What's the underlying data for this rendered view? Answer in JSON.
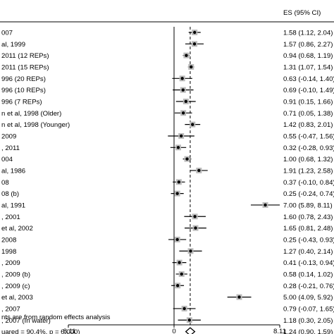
{
  "chart_data": {
    "type": "forest",
    "es_header": "ES (95% CI)",
    "reference_value": 0,
    "pooled_line_value": 1.24,
    "axis_ticks": [
      "-8.11",
      "0",
      "8.11"
    ],
    "xlim": [
      -8.11,
      8.11
    ],
    "studies": [
      {
        "label": "007",
        "es": 1.58,
        "lo": 1.12,
        "hi": 2.04,
        "ci": "1.58 (1.12, 2.04)"
      },
      {
        "label": "al, 1999",
        "es": 1.57,
        "lo": 0.86,
        "hi": 2.27,
        "ci": "1.57 (0.86, 2.27)"
      },
      {
        "label": "2011 (12 REPs)",
        "es": 0.94,
        "lo": 0.68,
        "hi": 1.19,
        "ci": "0.94 (0.68, 1.19)"
      },
      {
        "label": "2011 (15 REPs)",
        "es": 1.31,
        "lo": 1.07,
        "hi": 1.54,
        "ci": "1.31 (1.07, 1.54)"
      },
      {
        "label": "996 (20 REPs)",
        "es": 0.63,
        "lo": -0.14,
        "hi": 1.4,
        "ci": "0.63 (-0.14, 1.40)"
      },
      {
        "label": "996 (10 REPs)",
        "es": 0.69,
        "lo": -0.1,
        "hi": 1.49,
        "ci": "0.69 (-0.10, 1.49)"
      },
      {
        "label": "996 (7 REPs)",
        "es": 0.91,
        "lo": 0.15,
        "hi": 1.66,
        "ci": "0.91 (0.15, 1.66)"
      },
      {
        "label": "n et al, 1998 (Older)",
        "es": 0.71,
        "lo": 0.05,
        "hi": 1.38,
        "ci": "0.71 (0.05, 1.38)"
      },
      {
        "label": "n et al, 1998 (Younger)",
        "es": 1.42,
        "lo": 0.83,
        "hi": 2.01,
        "ci": "1.42 (0.83, 2.01)"
      },
      {
        "label": "2009",
        "es": 0.55,
        "lo": -0.47,
        "hi": 1.56,
        "ci": "0.55 (-0.47, 1.56)"
      },
      {
        "label": ", 2011",
        "es": 0.32,
        "lo": -0.28,
        "hi": 0.93,
        "ci": "0.32 (-0.28, 0.93)"
      },
      {
        "label": "004",
        "es": 1.0,
        "lo": 0.68,
        "hi": 1.32,
        "ci": "1.00 (0.68, 1.32)"
      },
      {
        "label": "al, 1986",
        "es": 1.91,
        "lo": 1.23,
        "hi": 2.58,
        "ci": "1.91 (1.23, 2.58)"
      },
      {
        "label": "08",
        "es": 0.37,
        "lo": -0.1,
        "hi": 0.84,
        "ci": "0.37 (-0.10, 0.84)"
      },
      {
        "label": "08 (b)",
        "es": 0.25,
        "lo": -0.24,
        "hi": 0.74,
        "ci": "0.25 (-0.24, 0.74)"
      },
      {
        "label": " al, 1991",
        "es": 7.0,
        "lo": 5.89,
        "hi": 8.11,
        "ci": "7.00 (5.89, 8.11)"
      },
      {
        "label": ", 2001",
        "es": 1.6,
        "lo": 0.78,
        "hi": 2.43,
        "ci": "1.60 (0.78, 2.43)"
      },
      {
        "label": "et al, 2002",
        "es": 1.65,
        "lo": 0.81,
        "hi": 2.48,
        "ci": "1.65 (0.81, 2.48)"
      },
      {
        "label": " 2008",
        "es": 0.25,
        "lo": -0.43,
        "hi": 0.93,
        "ci": "0.25 (-0.43, 0.93)"
      },
      {
        "label": " 1998",
        "es": 1.27,
        "lo": 0.4,
        "hi": 2.14,
        "ci": "1.27 (0.40, 2.14)"
      },
      {
        "label": ", 2009",
        "es": 0.41,
        "lo": -0.13,
        "hi": 0.94,
        "ci": "0.41 (-0.13, 0.94)"
      },
      {
        "label": ", 2009 (b)",
        "es": 0.58,
        "lo": 0.14,
        "hi": 1.02,
        "ci": "0.58 (0.14, 1.02)"
      },
      {
        "label": ", 2009 (c)",
        "es": 0.28,
        "lo": -0.21,
        "hi": 0.76,
        "ci": "0.28 (-0.21, 0.76)"
      },
      {
        "label": "et al, 2003",
        "es": 5.0,
        "lo": 4.09,
        "hi": 5.92,
        "ci": "5.00 (4.09, 5.92)"
      },
      {
        "label": ", 2007",
        "es": 0.79,
        "lo": -0.07,
        "hi": 1.65,
        "ci": "0.79 (-0.07, 1.65)"
      },
      {
        "label": ", 2007 (In water)",
        "es": 1.18,
        "lo": 0.3,
        "hi": 2.05,
        "ci": "1.18 (0.30, 2.05)"
      }
    ],
    "overall": {
      "label": "uared = 90.4%, p = 0.000)",
      "es": 1.24,
      "lo": 0.9,
      "hi": 1.59,
      "ci": "1.24 (0.90, 1.59)"
    },
    "footnote": "nts are from random effects analysis"
  }
}
